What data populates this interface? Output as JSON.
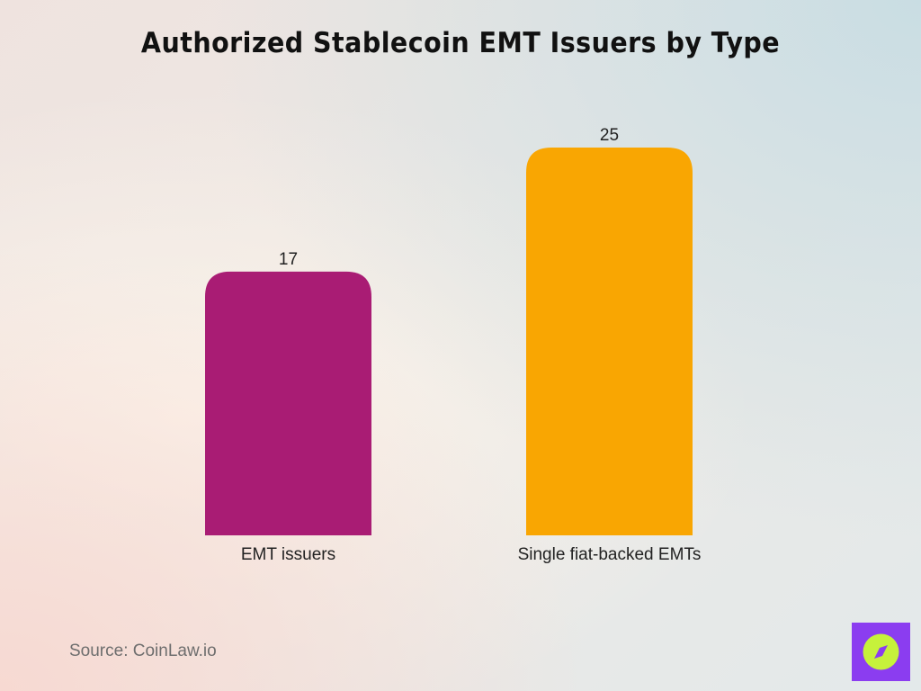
{
  "chart_data": {
    "type": "bar",
    "title": "Authorized Stablecoin EMT Issuers by Type",
    "categories": [
      "EMT issuers",
      "Single fiat-backed EMTs"
    ],
    "values": [
      17,
      25
    ],
    "colors": [
      "#a91c74",
      "#f9a602"
    ],
    "ylim": [
      0,
      25
    ],
    "grid": false,
    "xlabel": "",
    "ylabel": ""
  },
  "footer": {
    "source": "Source: CoinLaw.io"
  },
  "logo": {
    "icon": "compass-icon",
    "background": "#8b3df0",
    "accent": "#c6f23b"
  }
}
